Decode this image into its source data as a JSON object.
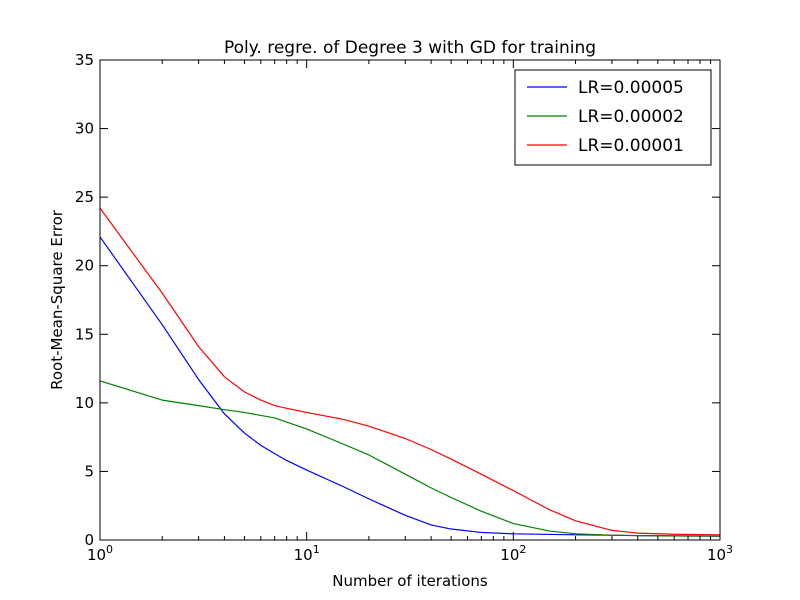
{
  "chart_data": {
    "type": "line",
    "title": "Poly. regre. of Degree 3 with GD for training",
    "xlabel": "Number of iterations",
    "ylabel": "Root-Mean-Square Error",
    "xscale": "log",
    "xlim": [
      1,
      1000
    ],
    "ylim": [
      0,
      35
    ],
    "xticks": [
      {
        "value": 1,
        "label": "10",
        "exp": "0"
      },
      {
        "value": 10,
        "label": "10",
        "exp": "1"
      },
      {
        "value": 100,
        "label": "10",
        "exp": "2"
      },
      {
        "value": 1000,
        "label": "10",
        "exp": "3"
      }
    ],
    "yticks": [
      0,
      5,
      10,
      15,
      20,
      25,
      30,
      35
    ],
    "legend_position": "top-right",
    "grid": false,
    "series": [
      {
        "name": "LR=0.00005",
        "color": "#0000ff",
        "points": [
          [
            1,
            22.1
          ],
          [
            2,
            15.7
          ],
          [
            3,
            11.7
          ],
          [
            4,
            9.2
          ],
          [
            5,
            7.8
          ],
          [
            6,
            6.9
          ],
          [
            7,
            6.3
          ],
          [
            8,
            5.8
          ],
          [
            10,
            5.1
          ],
          [
            15,
            3.9
          ],
          [
            20,
            3.0
          ],
          [
            30,
            1.8
          ],
          [
            40,
            1.1
          ],
          [
            50,
            0.8
          ],
          [
            70,
            0.55
          ],
          [
            100,
            0.45
          ],
          [
            200,
            0.38
          ],
          [
            400,
            0.32
          ],
          [
            1000,
            0.28
          ]
        ]
      },
      {
        "name": "LR=0.00002",
        "color": "#008000",
        "points": [
          [
            1,
            11.6
          ],
          [
            2,
            10.2
          ],
          [
            3,
            9.8
          ],
          [
            4,
            9.5
          ],
          [
            5,
            9.3
          ],
          [
            7,
            8.9
          ],
          [
            10,
            8.1
          ],
          [
            15,
            7.0
          ],
          [
            20,
            6.2
          ],
          [
            30,
            4.8
          ],
          [
            40,
            3.8
          ],
          [
            50,
            3.1
          ],
          [
            70,
            2.1
          ],
          [
            100,
            1.2
          ],
          [
            150,
            0.65
          ],
          [
            200,
            0.45
          ],
          [
            300,
            0.35
          ],
          [
            500,
            0.3
          ],
          [
            1000,
            0.28
          ]
        ]
      },
      {
        "name": "LR=0.00001",
        "color": "#ff0000",
        "points": [
          [
            1,
            24.2
          ],
          [
            2,
            18.0
          ],
          [
            3,
            14.1
          ],
          [
            4,
            11.9
          ],
          [
            5,
            10.8
          ],
          [
            6,
            10.2
          ],
          [
            7,
            9.8
          ],
          [
            8,
            9.6
          ],
          [
            10,
            9.3
          ],
          [
            15,
            8.8
          ],
          [
            20,
            8.3
          ],
          [
            30,
            7.4
          ],
          [
            40,
            6.6
          ],
          [
            50,
            5.9
          ],
          [
            70,
            4.8
          ],
          [
            100,
            3.6
          ],
          [
            150,
            2.2
          ],
          [
            200,
            1.4
          ],
          [
            300,
            0.7
          ],
          [
            400,
            0.5
          ],
          [
            600,
            0.42
          ],
          [
            1000,
            0.38
          ]
        ]
      }
    ]
  }
}
